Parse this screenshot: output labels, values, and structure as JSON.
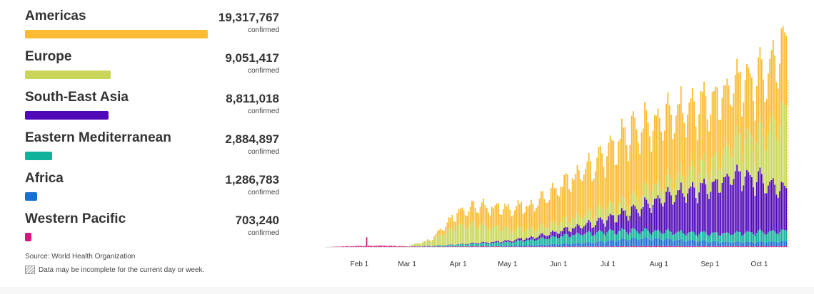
{
  "regions": [
    {
      "name": "Americas",
      "count": "19,317,767",
      "unit": "confirmed",
      "value": 19317767,
      "color": "#fbbc33"
    },
    {
      "name": "Europe",
      "count": "9,051,417",
      "unit": "confirmed",
      "value": 9051417,
      "color": "#cad65a"
    },
    {
      "name": "South-East Asia",
      "count": "8,811,018",
      "unit": "confirmed",
      "value": 8811018,
      "color": "#5008b8"
    },
    {
      "name": "Eastern Mediterranean",
      "count": "2,884,897",
      "unit": "confirmed",
      "value": 2884897,
      "color": "#10b29c"
    },
    {
      "name": "Africa",
      "count": "1,286,783",
      "unit": "confirmed",
      "value": 1286783,
      "color": "#1a6fd0"
    },
    {
      "name": "Western Pacific",
      "count": "703,240",
      "unit": "confirmed",
      "value": 703240,
      "color": "#d4187f"
    }
  ],
  "source": "Source: World Health Organization",
  "incomplete_note": "Data may be incomplete for the current day or week.",
  "chart_data": {
    "type": "bar",
    "stacked": true,
    "x_range": [
      "2020-01-11",
      "2020-10-18"
    ],
    "x_ticks": [
      "Feb 1",
      "Mar 1",
      "Apr 1",
      "May 1",
      "Jun 1",
      "Jul 1",
      "Aug 1",
      "Sep 1",
      "Oct 1"
    ],
    "y_axis_visible": false,
    "series_order": [
      "Western Pacific",
      "Africa",
      "Eastern Mediterranean",
      "South-East Asia",
      "Europe",
      "Americas"
    ],
    "milestones": [
      {
        "date": "2020-01-11",
        "Western Pacific": 0,
        "Africa": 0,
        "Eastern Mediterranean": 0,
        "South-East Asia": 0,
        "Europe": 0,
        "Americas": 0
      },
      {
        "date": "2020-02-01",
        "Western Pacific": 2000,
        "Africa": 0,
        "Eastern Mediterranean": 0,
        "South-East Asia": 0,
        "Europe": 0,
        "Americas": 0
      },
      {
        "date": "2020-02-15",
        "Western Pacific": 2500,
        "Africa": 0,
        "Eastern Mediterranean": 0,
        "South-East Asia": 0,
        "Europe": 0,
        "Americas": 0
      },
      {
        "date": "2020-03-01",
        "Western Pacific": 1000,
        "Africa": 0,
        "Eastern Mediterranean": 200,
        "South-East Asia": 0,
        "Europe": 500,
        "Americas": 0
      },
      {
        "date": "2020-03-15",
        "Western Pacific": 800,
        "Africa": 200,
        "Eastern Mediterranean": 1000,
        "South-East Asia": 100,
        "Europe": 10000,
        "Americas": 1000
      },
      {
        "date": "2020-04-01",
        "Western Pacific": 1000,
        "Africa": 500,
        "Eastern Mediterranean": 3000,
        "South-East Asia": 500,
        "Europe": 33000,
        "Americas": 25000
      },
      {
        "date": "2020-04-15",
        "Western Pacific": 1200,
        "Africa": 800,
        "Eastern Mediterranean": 4000,
        "South-East Asia": 1500,
        "Europe": 30000,
        "Americas": 33000
      },
      {
        "date": "2020-05-01",
        "Western Pacific": 800,
        "Africa": 1500,
        "Eastern Mediterranean": 6000,
        "South-East Asia": 2500,
        "Europe": 20000,
        "Americas": 35000
      },
      {
        "date": "2020-05-15",
        "Western Pacific": 800,
        "Africa": 2500,
        "Eastern Mediterranean": 9000,
        "South-East Asia": 4000,
        "Europe": 15000,
        "Americas": 40000
      },
      {
        "date": "2020-06-01",
        "Western Pacific": 800,
        "Africa": 4000,
        "Eastern Mediterranean": 13000,
        "South-East Asia": 9000,
        "Europe": 15000,
        "Americas": 60000
      },
      {
        "date": "2020-06-15",
        "Western Pacific": 900,
        "Africa": 6000,
        "Eastern Mediterranean": 16000,
        "South-East Asia": 14000,
        "Europe": 18000,
        "Americas": 75000
      },
      {
        "date": "2020-07-01",
        "Western Pacific": 1000,
        "Africa": 9000,
        "Eastern Mediterranean": 16000,
        "South-East Asia": 22000,
        "Europe": 19000,
        "Americas": 95000
      },
      {
        "date": "2020-07-15",
        "Western Pacific": 1500,
        "Africa": 13000,
        "Eastern Mediterranean": 14000,
        "South-East Asia": 34000,
        "Europe": 20000,
        "Americas": 120000
      },
      {
        "date": "2020-08-01",
        "Western Pacific": 1800,
        "Africa": 12000,
        "Eastern Mediterranean": 13000,
        "South-East Asia": 55000,
        "Europe": 25000,
        "Americas": 110000
      },
      {
        "date": "2020-08-15",
        "Western Pacific": 1500,
        "Africa": 10000,
        "Eastern Mediterranean": 13000,
        "South-East Asia": 70000,
        "Europe": 30000,
        "Americas": 110000
      },
      {
        "date": "2020-09-01",
        "Western Pacific": 1500,
        "Africa": 8000,
        "Eastern Mediterranean": 14000,
        "South-East Asia": 80000,
        "Europe": 40000,
        "Americas": 105000
      },
      {
        "date": "2020-09-15",
        "Western Pacific": 1500,
        "Africa": 7000,
        "Eastern Mediterranean": 15000,
        "South-East Asia": 100000,
        "Europe": 55000,
        "Americas": 100000
      },
      {
        "date": "2020-10-01",
        "Western Pacific": 1500,
        "Africa": 7000,
        "Eastern Mediterranean": 17000,
        "South-East Asia": 90000,
        "Europe": 75000,
        "Americas": 100000
      },
      {
        "date": "2020-10-18",
        "Western Pacific": 1800,
        "Africa": 8000,
        "Eastern Mediterranean": 18000,
        "South-East Asia": 70000,
        "Europe": 140000,
        "Americas": 120000
      }
    ]
  }
}
